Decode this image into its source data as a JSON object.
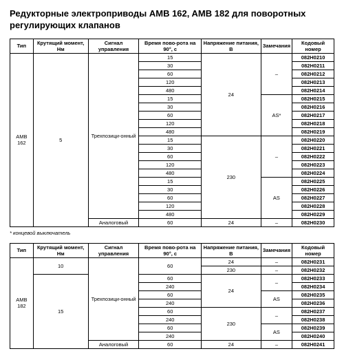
{
  "title": "Редукторные электроприводы AMB 162, AMB 182 для поворотных регулирующих клапанов",
  "headers": {
    "type": "Тип",
    "torque": "Крутящий момент, Нм",
    "signal": "Сигнал управления",
    "time": "Время пово-рота на 90°, с",
    "voltage": "Напряжение питания, В",
    "notes": "Замечания",
    "code": "Кодовый номер"
  },
  "footnote": "* концевой выключатель",
  "table1": {
    "type": "AMB 162",
    "torque": "5",
    "signal_3pos": "Трехпозици-онный",
    "signal_analog": "Аналоговый",
    "voltage_24": "24",
    "voltage_230": "230",
    "notes_dash": "–",
    "notes_as_star": "AS*",
    "notes_as": "AS",
    "rows": [
      {
        "time": "15",
        "code": "082H0210"
      },
      {
        "time": "30",
        "code": "082H0211"
      },
      {
        "time": "60",
        "code": "082H0212"
      },
      {
        "time": "120",
        "code": "082H0213"
      },
      {
        "time": "480",
        "code": "082H0214"
      },
      {
        "time": "15",
        "code": "082H0215"
      },
      {
        "time": "30",
        "code": "082H0216"
      },
      {
        "time": "60",
        "code": "082H0217"
      },
      {
        "time": "120",
        "code": "082H0218"
      },
      {
        "time": "480",
        "code": "082H0219"
      },
      {
        "time": "15",
        "code": "082H0220"
      },
      {
        "time": "30",
        "code": "082H0221"
      },
      {
        "time": "60",
        "code": "082H0222"
      },
      {
        "time": "120",
        "code": "082H0223"
      },
      {
        "time": "480",
        "code": "082H0224"
      },
      {
        "time": "15",
        "code": "082H0225"
      },
      {
        "time": "30",
        "code": "082H0226"
      },
      {
        "time": "60",
        "code": "082H0227"
      },
      {
        "time": "120",
        "code": "082H0228"
      },
      {
        "time": "480",
        "code": "082H0229"
      },
      {
        "time": "60",
        "code": "082H0230"
      }
    ]
  },
  "table2": {
    "type": "AMB 182",
    "torque_10": "10",
    "torque_15": "15",
    "signal_3pos": "Трехпозици-онный",
    "signal_analog": "Аналоговый",
    "voltage_24": "24",
    "voltage_230": "230",
    "notes_dash": "–",
    "notes_as": "AS",
    "rows": [
      {
        "time": "60",
        "code": "082H0231"
      },
      {
        "code": "082H0232"
      },
      {
        "time": "60",
        "code": "082H0233"
      },
      {
        "time": "240",
        "code": "082H0234"
      },
      {
        "time": "60",
        "code": "082H0235"
      },
      {
        "time": "240",
        "code": "082H0236"
      },
      {
        "time": "60",
        "code": "082H0237"
      },
      {
        "time": "240",
        "code": "082H0238"
      },
      {
        "time": "60",
        "code": "082H0239"
      },
      {
        "time": "240",
        "code": "082H0240"
      },
      {
        "time": "60",
        "code": "082H0241"
      }
    ]
  }
}
